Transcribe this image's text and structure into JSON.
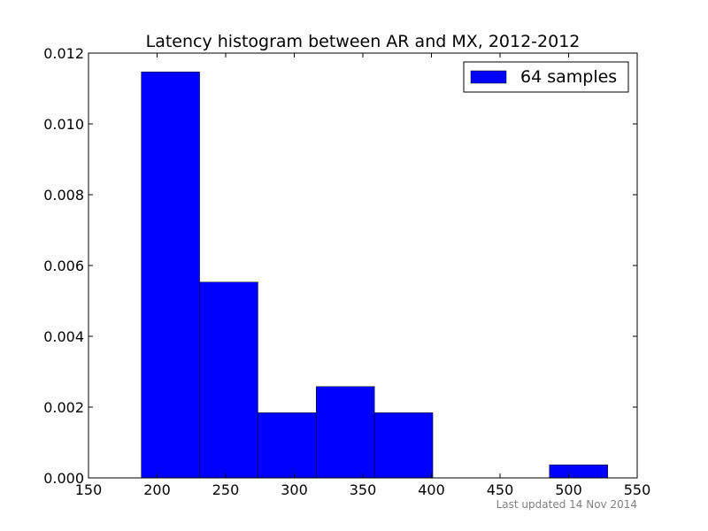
{
  "chart_data": {
    "type": "bar",
    "title": "Latency histogram between AR and MX, 2012-2012",
    "xlabel": "",
    "ylabel": "",
    "xlim": [
      150,
      550
    ],
    "ylim": [
      0,
      0.012
    ],
    "x_ticks": [
      "150",
      "200",
      "250",
      "300",
      "350",
      "400",
      "450",
      "500",
      "550"
    ],
    "y_ticks": [
      "0.000",
      "0.002",
      "0.004",
      "0.006",
      "0.008",
      "0.010",
      "0.012"
    ],
    "bins": [
      {
        "x0": 188.5,
        "x1": 231.0,
        "value": 0.01147
      },
      {
        "x0": 231.0,
        "x1": 273.5,
        "value": 0.00553
      },
      {
        "x0": 273.5,
        "x1": 316.0,
        "value": 0.00184
      },
      {
        "x0": 316.0,
        "x1": 358.5,
        "value": 0.00258
      },
      {
        "x0": 358.5,
        "x1": 401.0,
        "value": 0.00184
      },
      {
        "x0": 401.0,
        "x1": 443.5,
        "value": 0
      },
      {
        "x0": 443.5,
        "x1": 486.0,
        "value": 0
      },
      {
        "x0": 486.0,
        "x1": 528.5,
        "value": 0.00037
      }
    ],
    "series": [
      {
        "name": "64 samples",
        "color": "#0000ff"
      }
    ],
    "legend_position": "top-right",
    "grid": false
  },
  "footnote": "Last updated 14 Nov 2014"
}
